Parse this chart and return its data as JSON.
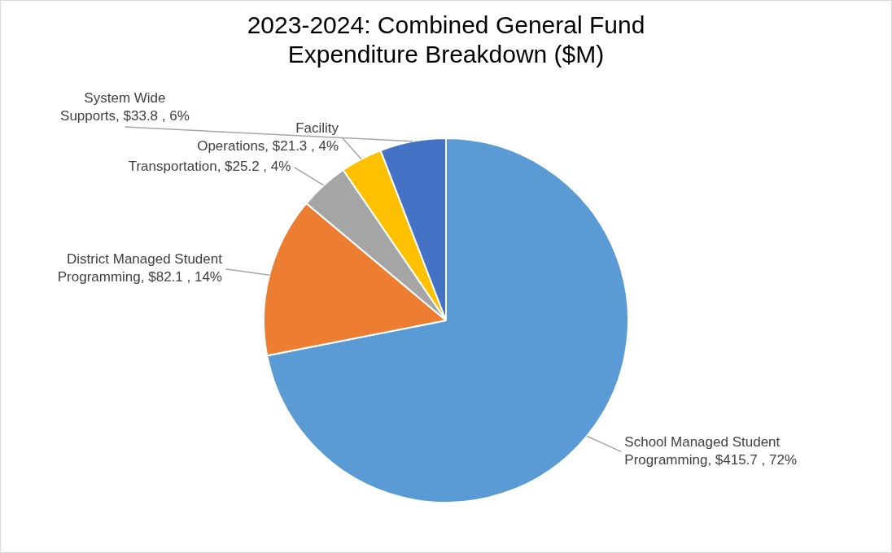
{
  "chart_data": {
    "type": "pie",
    "title": "2023-2024: Combined General Fund Expenditure Breakdown ($M)",
    "categories": [
      "School Managed Student Programming",
      "District Managed Student Programming",
      "Transportation",
      "Facility Operations",
      "System Wide Supports"
    ],
    "values": [
      415.7,
      82.1,
      25.2,
      21.3,
      33.8
    ],
    "value_labels": [
      "$415.7 , 72%",
      "$82.1 , 14%",
      "$25.2 , 4%",
      "$21.3 , 4%",
      "$33.8 , 6%"
    ],
    "colors": [
      "#5b9bd5",
      "#ed7d31",
      "#a5a5a5",
      "#ffc000",
      "#4472c4"
    ],
    "legend": false
  }
}
